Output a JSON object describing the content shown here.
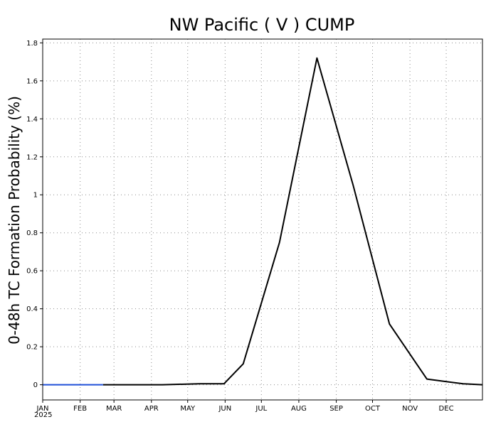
{
  "chart_data": {
    "type": "line",
    "title": "NW Pacific ( V ) CUMP",
    "xlabel": "",
    "ylabel": "0-48h TC Formation Probability (%)",
    "year_label": "2025",
    "x_tick_labels": [
      "JAN",
      "FEB",
      "MAR",
      "APR",
      "MAY",
      "JUN",
      "JUL",
      "AUG",
      "SEP",
      "OCT",
      "NOV",
      "DEC"
    ],
    "y_ticks": [
      0,
      0.2,
      0.4,
      0.6,
      0.8,
      1,
      1.2,
      1.4,
      1.6,
      1.8
    ],
    "y_tick_labels": [
      "0",
      "0.2",
      "0.4",
      "0.6",
      "0.8",
      "1",
      "1.2",
      "1.4",
      "1.6",
      "1.8"
    ],
    "xlim": [
      "2025-01-01",
      "2025-12-31"
    ],
    "ylim": [
      -0.08,
      1.82
    ],
    "grid": true,
    "series": [
      {
        "name": "",
        "color": "#1f4fd8",
        "x": [
          "2025-01-01",
          "2025-02-20"
        ],
        "values": [
          0,
          0
        ]
      },
      {
        "name": "",
        "color": "#000000",
        "x": [
          "2025-02-20",
          "2025-04-10",
          "2025-05-11",
          "2025-05-31",
          "2025-06-16",
          "2025-07-16",
          "2025-08-16",
          "2025-09-15",
          "2025-10-15",
          "2025-11-15",
          "2025-12-15",
          "2025-12-31"
        ],
        "values": [
          0,
          0,
          0.005,
          0.005,
          0.11,
          0.75,
          1.72,
          1.05,
          0.32,
          0.03,
          0.005,
          0
        ]
      }
    ]
  }
}
